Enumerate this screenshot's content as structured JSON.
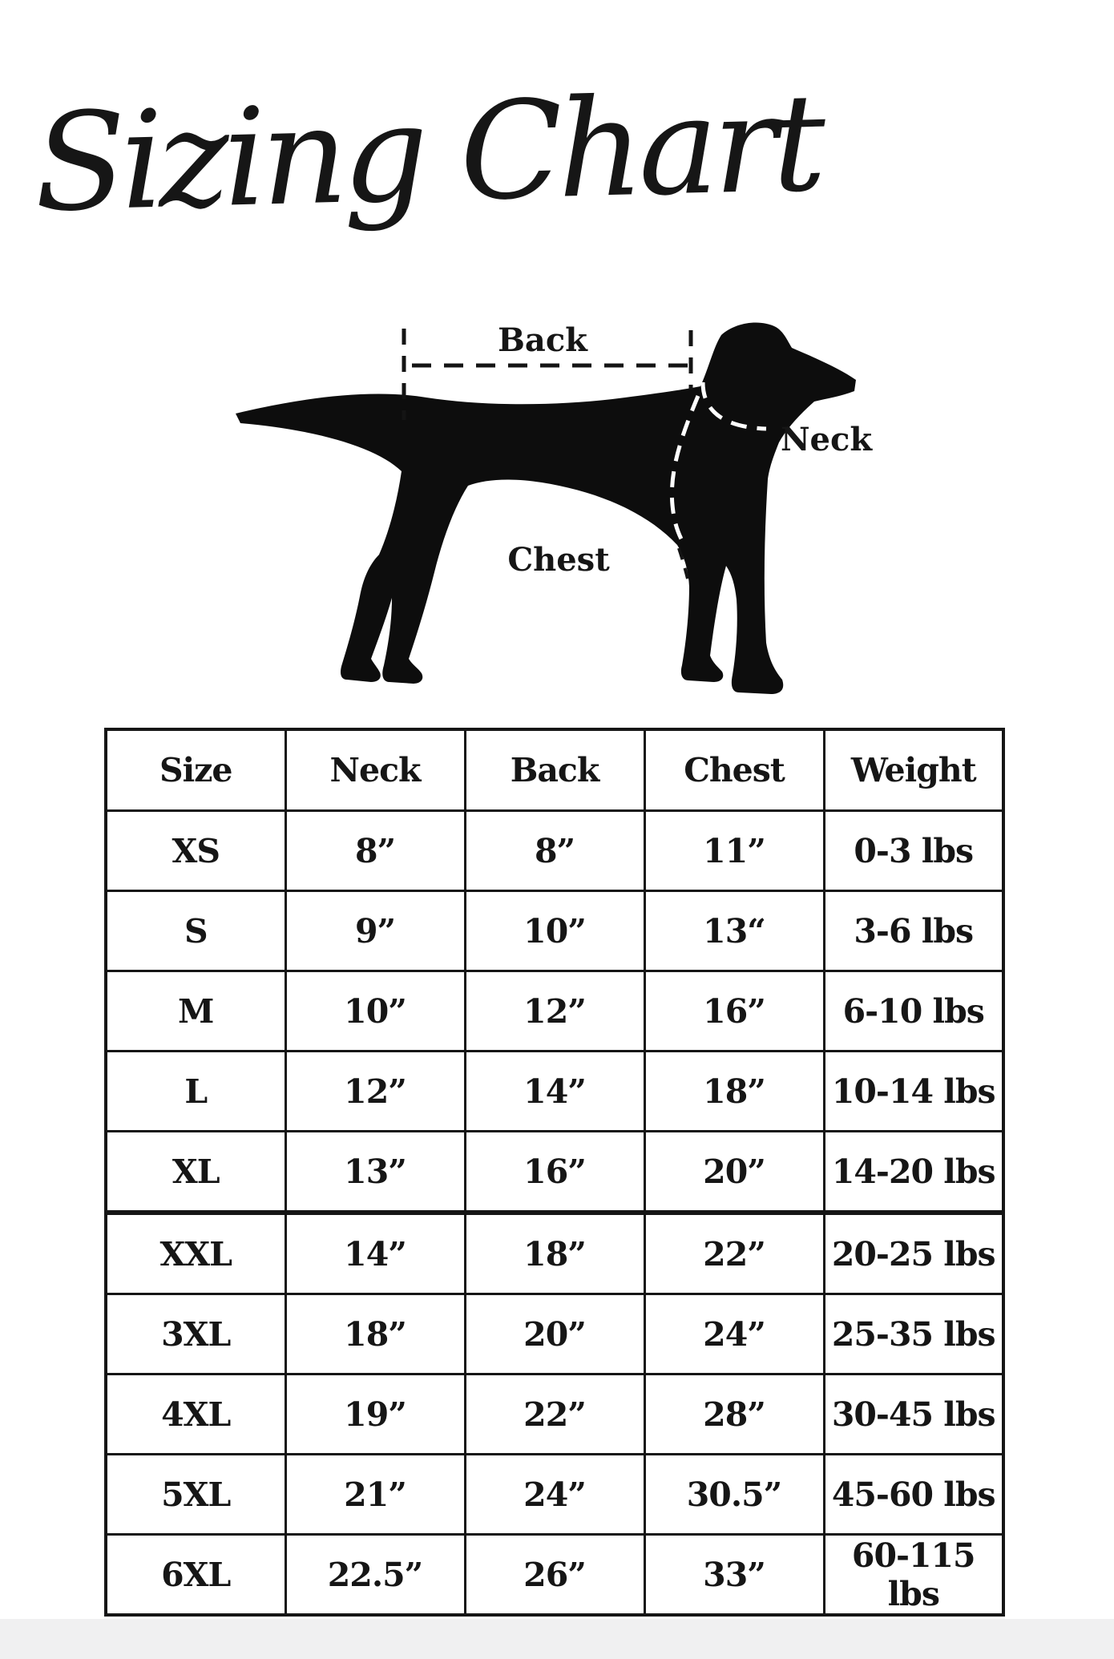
{
  "page": {
    "title": "Sizing Chart",
    "background": "#ffffff",
    "ink": "#161616",
    "footer_color": "#f0f0f1"
  },
  "diagram": {
    "icon": "dog-silhouette-icon",
    "labels": {
      "back": "Back",
      "neck": "Neck",
      "chest": "Chest"
    }
  },
  "chart_data": {
    "type": "table",
    "title": "Sizing Chart",
    "columns": [
      "Size",
      "Neck",
      "Back",
      "Chest",
      "Weight"
    ],
    "rows": [
      [
        "XS",
        "8”",
        "8”",
        "11”",
        "0-3 lbs"
      ],
      [
        "S",
        "9”",
        "10”",
        "13“",
        "3-6 lbs"
      ],
      [
        "M",
        "10”",
        "12”",
        "16”",
        "6-10 lbs"
      ],
      [
        "L",
        "12”",
        "14”",
        "18”",
        "10-14 lbs"
      ],
      [
        "XL",
        "13”",
        "16”",
        "20”",
        "14-20 lbs"
      ],
      [
        "XXL",
        "14”",
        "18”",
        "22”",
        "20-25 lbs"
      ],
      [
        "3XL",
        "18”",
        "20”",
        "24”",
        "25-35 lbs"
      ],
      [
        "4XL",
        "19”",
        "22”",
        "28”",
        "30-45 lbs"
      ],
      [
        "5XL",
        "21”",
        "24”",
        "30.5”",
        "45-60 lbs"
      ],
      [
        "6XL",
        "22.5”",
        "26”",
        "33”",
        "60-115 lbs"
      ]
    ]
  }
}
